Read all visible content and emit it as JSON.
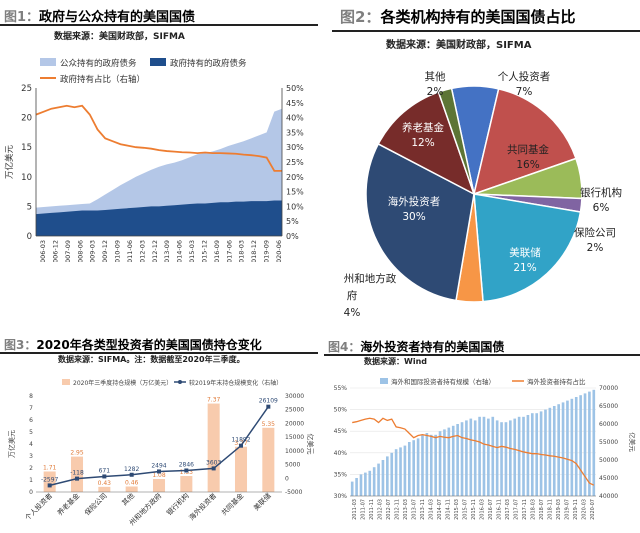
{
  "figures": [
    {
      "number": "图1：",
      "title": "政府与公众持有的美国国债",
      "source": "数据来源：美国财政部，SIFMA"
    },
    {
      "number": "图2：",
      "title": "各类机构持有的美国国债占比",
      "source": "数据来源：美国财政部，SIFMA"
    },
    {
      "number": "图3：",
      "title": "2020年各类型投资者的美国国债持仓变化",
      "source": "数据来源：SIFMA。注：数据截至2020年三季度。"
    },
    {
      "number": "图4：",
      "title": "海外投资者持有的美国国债",
      "source": "数据来源：Wind"
    }
  ],
  "chart_data": [
    {
      "type": "area",
      "legend": [
        "公众持有的政府债务",
        "政府持有的政府债务",
        "政府持有占比（右轴）"
      ],
      "ylabel": "万亿美元",
      "ylim": [
        0,
        25
      ],
      "y_ticks": [
        "0",
        "5",
        "10",
        "15",
        "20",
        "25"
      ],
      "y2lim": [
        0,
        50
      ],
      "y2_ticks": [
        "0%",
        "5%",
        "10%",
        "15%",
        "20%",
        "25%",
        "30%",
        "35%",
        "40%",
        "45%",
        "50%"
      ],
      "x_ticks": [
        "2006-03",
        "2006-12",
        "2007-09",
        "2008-06",
        "2009-03",
        "2009-12",
        "2010-09",
        "2011-06",
        "2012-03",
        "2012-12",
        "2013-09",
        "2014-06",
        "2015-03",
        "2015-12",
        "2016-09",
        "2017-06",
        "2018-03",
        "2018-12",
        "2019-09",
        "2020-06"
      ],
      "series": [
        {
          "name": "公众持有的政府债务",
          "values": [
            4.8,
            4.9,
            5.0,
            5.1,
            5.2,
            5.3,
            5.4,
            5.5,
            6.2,
            7.0,
            7.8,
            8.6,
            9.3,
            10.0,
            10.6,
            11.2,
            11.7,
            12.1,
            12.4,
            12.8,
            13.3,
            13.8,
            14.0,
            14.3,
            14.7,
            15.2,
            15.6,
            16.0,
            16.5,
            17.0,
            17.5,
            21.0,
            21.5
          ]
        },
        {
          "name": "政府持有的政府债务",
          "values": [
            3.7,
            3.8,
            3.9,
            4.0,
            4.1,
            4.2,
            4.3,
            4.3,
            4.3,
            4.4,
            4.5,
            4.6,
            4.7,
            4.8,
            4.9,
            5.0,
            5.0,
            5.1,
            5.2,
            5.3,
            5.4,
            5.5,
            5.5,
            5.6,
            5.7,
            5.7,
            5.8,
            5.8,
            5.9,
            5.9,
            5.9,
            6.0,
            6.0
          ]
        },
        {
          "name": "政府持有占比（右轴）",
          "values": [
            41,
            42,
            43,
            43.5,
            44,
            43.5,
            44,
            41,
            36,
            33,
            32,
            31,
            30.5,
            30,
            29.8,
            29.5,
            29,
            28.7,
            28.5,
            28.3,
            28.2,
            28,
            28.2,
            28,
            28,
            27.9,
            27.8,
            27.5,
            27.3,
            27,
            26.5,
            22,
            22
          ]
        }
      ]
    },
    {
      "type": "pie",
      "categories": [
        "个人投资者",
        "共同基金",
        "银行机构",
        "保险公司",
        "美联储",
        "州和地方政府",
        "海外投资者",
        "养老基金",
        "其他"
      ],
      "values": [
        7,
        16,
        6,
        2,
        21,
        4,
        30,
        12,
        2
      ],
      "labels": [
        "7%",
        "16%",
        "6%",
        "2%",
        "21%",
        "4%",
        "30%",
        "12%",
        "2%"
      ],
      "colors": [
        "#4472c4",
        "#c0504d",
        "#9bbb59",
        "#8064a2",
        "#31a3c7",
        "#f79646",
        "#2e4a74",
        "#772c2a",
        "#5d7535"
      ]
    },
    {
      "type": "bar",
      "legend": [
        "2020年三季度持仓规模（万亿美元）",
        "较2019年末持仓规模变化（右轴）"
      ],
      "categories": [
        "个人投资者",
        "养老基金",
        "保险公司",
        "其他",
        "州和地方政府",
        "银行机构",
        "海外投资者",
        "共同基金",
        "美联储"
      ],
      "values": [
        1.71,
        2.95,
        0.43,
        0.46,
        1.08,
        1.33,
        7.37,
        3.77,
        5.35
      ],
      "ylim": [
        0,
        8
      ],
      "y_ticks": [
        "0",
        "1",
        "2",
        "3",
        "4",
        "5",
        "6",
        "7",
        "8"
      ],
      "ylabel": "万亿美元",
      "series": [
        {
          "name": "较2019年末持仓规模变化（右轴）",
          "values": [
            -2597,
            -118,
            671,
            1282,
            2494,
            2846,
            3603,
            11892,
            26109
          ],
          "labels": [
            "-2597",
            "-118",
            "671",
            "1282",
            "2494",
            "2846",
            "3603",
            "11892",
            "26109"
          ]
        }
      ],
      "y2lim": [
        -5000,
        30000
      ],
      "y2_ticks": [
        "-5000",
        "0",
        "5000",
        "10000",
        "15000",
        "20000",
        "25000",
        "30000"
      ],
      "y2label": "亿美元"
    },
    {
      "type": "bar",
      "legend": [
        "海外和国际投资者持有规模（右轴）",
        "海外投资者持有占比"
      ],
      "x_ticks": [
        "2011-03",
        "2011-07",
        "2011-11",
        "2012-03",
        "2012-07",
        "2012-11",
        "2013-03",
        "2013-07",
        "2013-11",
        "2014-03",
        "2014-07",
        "2014-11",
        "2015-03",
        "2015-07",
        "2015-11",
        "2016-03",
        "2016-07",
        "2016-11",
        "2017-03",
        "2017-07",
        "2017-11",
        "2018-03",
        "2018-07",
        "2018-11",
        "2019-03",
        "2019-07",
        "2019-11",
        "2020-03",
        "2020-07"
      ],
      "series": [
        {
          "name": "海外和国际投资者持有规模（右轴）",
          "values": [
            44000,
            45000,
            46000,
            46500,
            47000,
            48000,
            49000,
            50000,
            51000,
            52000,
            53000,
            53500,
            54000,
            55000,
            55500,
            56000,
            57000,
            57500,
            57000,
            57000,
            58000,
            58500,
            59000,
            59500,
            60000,
            60500,
            61000,
            61500,
            61000,
            62000,
            62000,
            61500,
            62000,
            61000,
            60500,
            60500,
            61000,
            61500,
            62000,
            62000,
            62500,
            63000,
            63000,
            63500,
            64000,
            64500,
            65000,
            65500,
            66000,
            66500,
            67000,
            67500,
            68000,
            68500,
            69000,
            69500
          ]
        },
        {
          "name": "海外投资者持有占比",
          "values": [
            47,
            47.2,
            47.5,
            47.8,
            48,
            47.8,
            47,
            48,
            47.5,
            47.8,
            46,
            45.8,
            45.5,
            44.5,
            43.5,
            44,
            44.2,
            44,
            43.8,
            43.5,
            43.8,
            43.6,
            43.5,
            43.8,
            44,
            43.5,
            43.3,
            43,
            42.8,
            42.5,
            42,
            41.8,
            41.5,
            41.2,
            41.5,
            41.3,
            41,
            40.8,
            40.5,
            40.2,
            40,
            39.8,
            39.8,
            39.6,
            39.5,
            39.3,
            39.2,
            39,
            38.8,
            38.5,
            38.2,
            37.5,
            36,
            34.5,
            33,
            32.5
          ]
        }
      ],
      "ylim": [
        30,
        55
      ],
      "y_ticks": [
        "30%",
        "35%",
        "40%",
        "45%",
        "50%",
        "55%"
      ],
      "y2lim": [
        40000,
        70000
      ],
      "y2_ticks": [
        "40000",
        "45000",
        "50000",
        "55000",
        "60000",
        "65000",
        "70000"
      ],
      "y2label": "亿美元"
    }
  ]
}
